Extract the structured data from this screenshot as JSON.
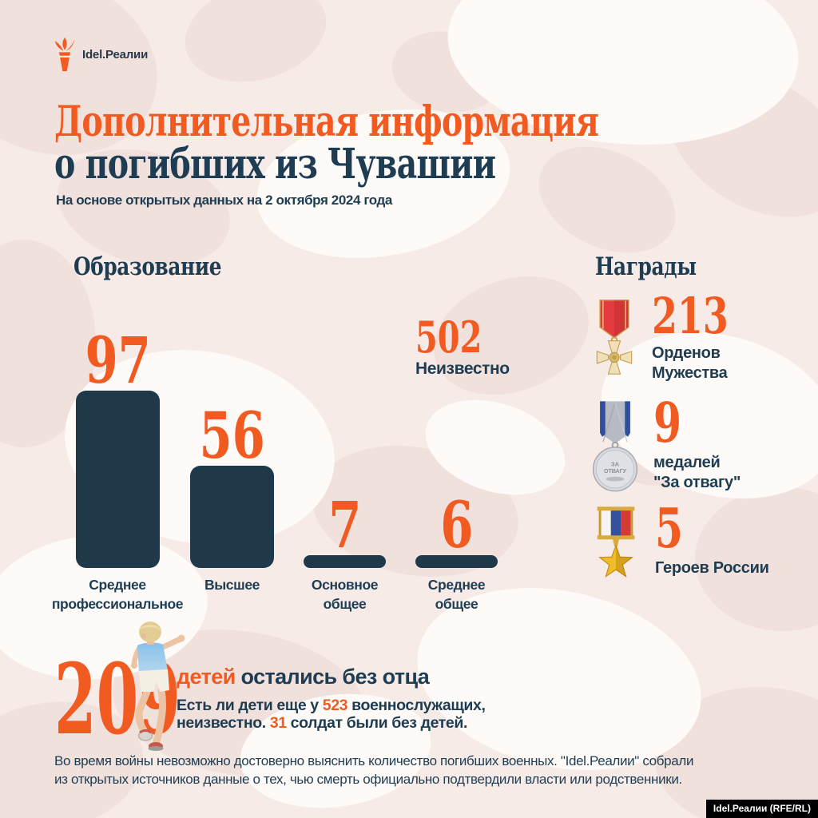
{
  "colors": {
    "background": "#f7ebe8",
    "camo_light": "#fdfaf8",
    "camo_dark": "#f1e1dc",
    "accent_orange": "#f15b22",
    "dark_navy": "#1e3d52",
    "bar_fill": "#20394a"
  },
  "logo": {
    "brand": "Idel.Реалии",
    "icon": "torch-icon"
  },
  "header": {
    "title_line1": "Дополнительная информация",
    "title_line2": "о погибших из Чувашии",
    "subtitle": "На основе открытых данных на 2 октября 2024 года"
  },
  "education": {
    "title": "Образование",
    "bars": [
      {
        "value": "97",
        "label": "Среднее\nпрофессиональное"
      },
      {
        "value": "56",
        "label": "Высшее"
      },
      {
        "value": "7",
        "label": "Основное\nобщее"
      },
      {
        "value": "6",
        "label": "Среднее\nобщее"
      }
    ],
    "unknown_value": "502",
    "unknown_label": "Неизвестно"
  },
  "chart_data": {
    "type": "bar",
    "title": "Образование",
    "categories": [
      "Среднее профессиональное",
      "Высшее",
      "Основное общее",
      "Среднее общее",
      "Неизвестно"
    ],
    "values": [
      97,
      56,
      7,
      6,
      502
    ],
    "xlabel": "",
    "ylabel": "",
    "notes": "Category 'Неизвестно' (502) is shown as text only without a bar; bar color #20394a; value labels orange above bars"
  },
  "awards": {
    "title": "Награды",
    "items": [
      {
        "value": "213",
        "label": "Орденов\nМужества",
        "icon": "order-of-courage-medal"
      },
      {
        "value": "9",
        "label": "медалей\n\"За отвагу\"",
        "icon": "za-otvagu-medal"
      },
      {
        "value": "5",
        "label": "Героев России",
        "icon": "hero-of-russia-star"
      }
    ]
  },
  "children": {
    "value": "209",
    "label_highlight": "детей",
    "label_rest": " остались без отца",
    "note_part1": "Есть ли дети еще у ",
    "note_num1": "523",
    "note_part2": " военнослужащих,",
    "note_part3": "неизвестно. ",
    "note_num2": "31",
    "note_part4": " солдат были без детей."
  },
  "footer": {
    "line1": "Во время войны невозможно достоверно выяснить количество погибших военных. \"Idel.Реалии\" собрали",
    "line2": "из открытых источников данные о тех, чью смерть официально подтвердили власти или родственники.",
    "credit": "Idel.Реалии (RFE/RL)"
  }
}
